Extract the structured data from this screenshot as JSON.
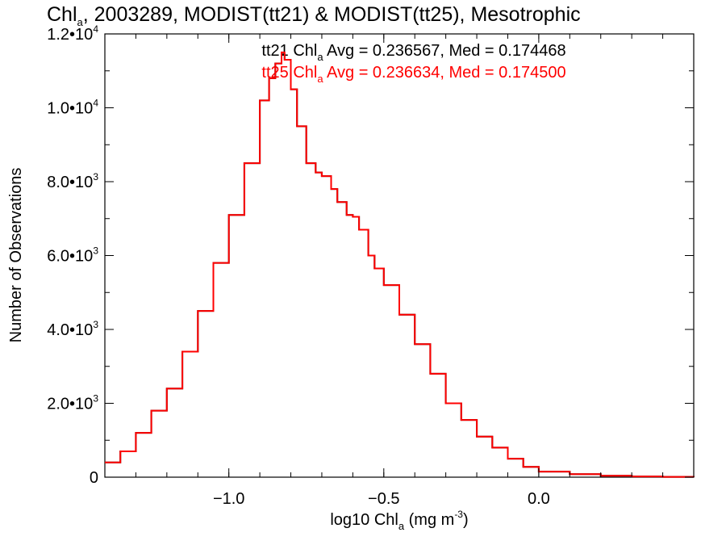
{
  "chart_data": {
    "type": "line",
    "title": {
      "main": "Chl",
      "sub": "a",
      "rest": ", 2003289, MODIST(tt21) & MODIST(tt25), Mesotrophic"
    },
    "xlabel": {
      "main": "log10 Chl",
      "sub": "a",
      "rest": " (mg m",
      "sup": "-3",
      "end": ")"
    },
    "ylabel": "Number of Observations",
    "xlim": [
      -1.4,
      0.5
    ],
    "ylim": [
      0,
      12000
    ],
    "x_ticks": [
      {
        "value": -1.0,
        "label": "−1.0"
      },
      {
        "value": -0.5,
        "label": "−0.5"
      },
      {
        "value": 0.0,
        "label": "0.0"
      }
    ],
    "y_ticks": [
      {
        "value": 0,
        "mant": "0",
        "exp": ""
      },
      {
        "value": 2000,
        "mant": "2.0•10",
        "exp": "3"
      },
      {
        "value": 4000,
        "mant": "4.0•10",
        "exp": "3"
      },
      {
        "value": 6000,
        "mant": "6.0•10",
        "exp": "3"
      },
      {
        "value": 8000,
        "mant": "8.0•10",
        "exp": "3"
      },
      {
        "value": 10000,
        "mant": "1.0•10",
        "exp": "4"
      },
      {
        "value": 12000,
        "mant": "1.2•10",
        "exp": "4"
      }
    ],
    "x_minor_step": 0.1,
    "y_minor_step": 1000,
    "grid": false,
    "legend": "top-center",
    "stats": [
      {
        "series": "tt21",
        "color": "#000000",
        "pre": "tt21 Chl",
        "sub": "a",
        "post": " Avg = 0.236567, Med = 0.174468"
      },
      {
        "series": "tt25",
        "color": "#ff0000",
        "pre": "tt25 Chl",
        "sub": "a",
        "post": " Avg = 0.236634, Med = 0.174500"
      }
    ],
    "x": [
      -1.4,
      -1.35,
      -1.3,
      -1.25,
      -1.2,
      -1.15,
      -1.1,
      -1.05,
      -1.0,
      -0.95,
      -0.9,
      -0.87,
      -0.85,
      -0.83,
      -0.82,
      -0.8,
      -0.78,
      -0.75,
      -0.72,
      -0.7,
      -0.67,
      -0.65,
      -0.62,
      -0.6,
      -0.58,
      -0.55,
      -0.53,
      -0.5,
      -0.45,
      -0.4,
      -0.35,
      -0.3,
      -0.25,
      -0.2,
      -0.15,
      -0.1,
      -0.05,
      0.0,
      0.1,
      0.2,
      0.3,
      0.4,
      0.5
    ],
    "series": [
      {
        "name": "tt21",
        "color": "#000000",
        "values": [
          400,
          700,
          1200,
          1800,
          2400,
          3400,
          4500,
          5800,
          7100,
          8500,
          10200,
          10800,
          11200,
          11450,
          11300,
          10500,
          9500,
          8500,
          8250,
          8150,
          7800,
          7450,
          7100,
          7050,
          6700,
          6000,
          5650,
          5200,
          4400,
          3600,
          2800,
          2000,
          1550,
          1100,
          800,
          500,
          280,
          150,
          80,
          40,
          20,
          8,
          3
        ]
      },
      {
        "name": "tt25",
        "color": "#ff0000",
        "values": [
          400,
          700,
          1200,
          1800,
          2400,
          3400,
          4500,
          5800,
          7100,
          8500,
          10200,
          10800,
          11200,
          11500,
          11300,
          10500,
          9500,
          8500,
          8250,
          8150,
          7800,
          7450,
          7100,
          7050,
          6700,
          6000,
          5650,
          5200,
          4400,
          3600,
          2800,
          2000,
          1550,
          1100,
          800,
          500,
          280,
          150,
          80,
          40,
          20,
          8,
          3
        ]
      }
    ]
  }
}
